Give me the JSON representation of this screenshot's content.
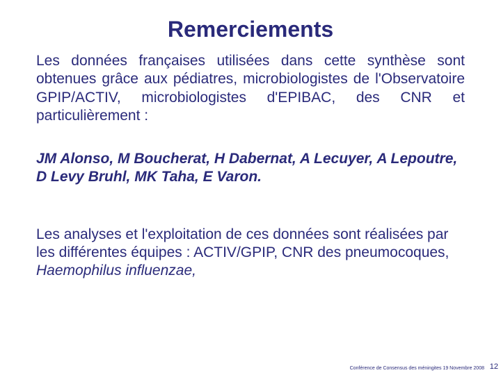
{
  "colors": {
    "text": "#2a2a7a",
    "background": "#ffffff"
  },
  "typography": {
    "title_fontsize": 32,
    "body_fontsize": 21,
    "footer_fontsize": 7,
    "page_fontsize": 11,
    "line_height": 1.25
  },
  "title": "Remerciements",
  "intro": "Les données françaises utilisées dans cette synthèse sont obtenues grâce aux pédiatres, microbiologistes de l'Observatoire GPIP/ACTIV, microbiologistes d'EPIBAC, des CNR  et particulièrement :",
  "names_line1": "JM Alonso, M Boucherat, H Dabernat, A Lecuyer, A Lepoutre,",
  "names_line2": "D Levy Bruhl, MK Taha, E Varon.",
  "analysis_part1": "Les analyses et l'exploitation de ces données sont réalisées par",
  "analysis_part2": "les différentes équipes : ACTIV/GPIP, CNR des pneumocoques, ",
  "analysis_italic": "Haemophilus  influenzae,",
  "footer": "Conférence de Consensus des méningites 19 Novembre 2008",
  "page_number": "12"
}
